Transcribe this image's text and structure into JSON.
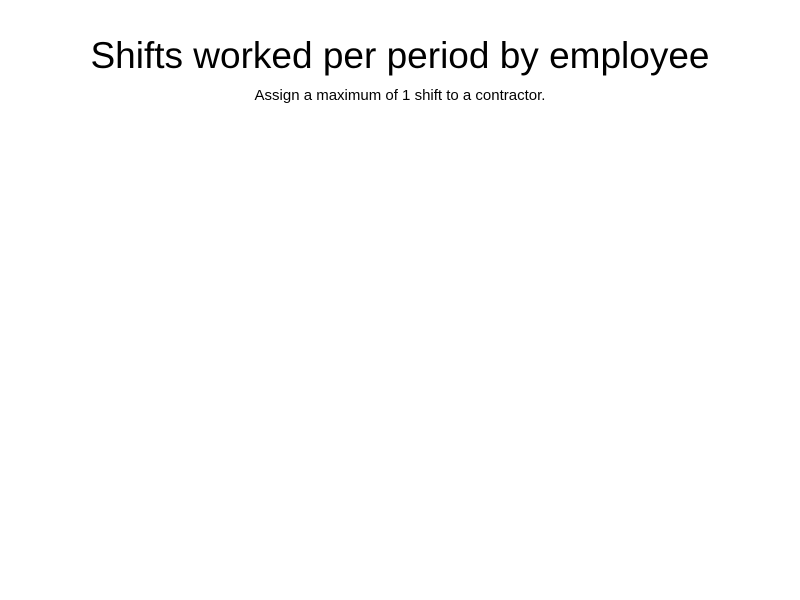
{
  "page": {
    "title": "Shifts worked per period by employee",
    "subtitle": "Assign a maximum of 1 shift to a contractor."
  }
}
